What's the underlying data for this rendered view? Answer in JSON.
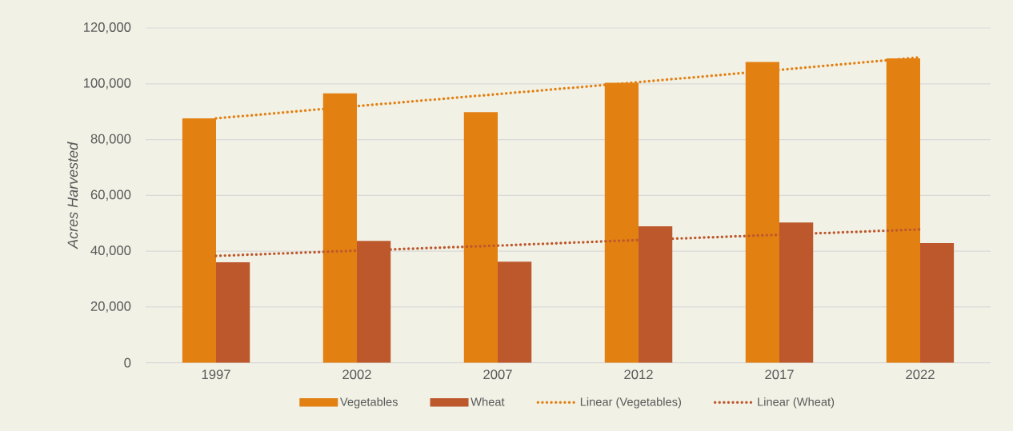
{
  "chart_data": {
    "type": "bar",
    "ylabel": "Acres Harvested",
    "categories": [
      "1997",
      "2002",
      "2007",
      "2012",
      "2017",
      "2022"
    ],
    "series": [
      {
        "name": "Vegetables",
        "color": "#e38012",
        "values": [
          87600,
          96600,
          89800,
          100400,
          107800,
          109100
        ]
      },
      {
        "name": "Wheat",
        "color": "#bd582c",
        "values": [
          36000,
          43700,
          36200,
          48900,
          50300,
          42900
        ]
      },
      {
        "name": "Linear (Vegetables)",
        "type": "line",
        "color": "#e38012",
        "line_style": "dotted",
        "marker": "none",
        "values": [
          87600,
          92000,
          96300,
          100600,
          105000,
          109500
        ]
      },
      {
        "name": "Linear (Wheat)",
        "type": "line",
        "color": "#bd582c",
        "line_style": "dotted",
        "marker": "none",
        "values": [
          38300,
          40200,
          42000,
          44000,
          45900,
          47800
        ]
      }
    ],
    "ylim": [
      0,
      120000
    ],
    "yticks": [
      {
        "value": 0,
        "label": "0"
      },
      {
        "value": 20000,
        "label": "20,000"
      },
      {
        "value": 40000,
        "label": "40,000"
      },
      {
        "value": 60000,
        "label": "60,000"
      },
      {
        "value": 80000,
        "label": "80,000"
      },
      {
        "value": 100000,
        "label": "100,000"
      },
      {
        "value": 120000,
        "label": "120,000"
      }
    ],
    "grid": "y",
    "legend": "bottom"
  }
}
